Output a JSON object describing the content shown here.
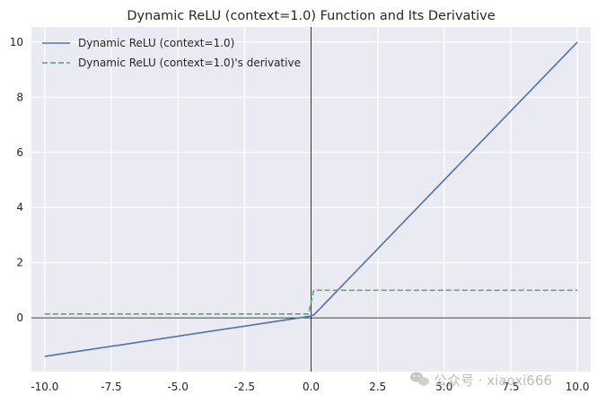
{
  "chart_data": {
    "type": "line",
    "title": "Dynamic ReLU (context=1.0) Function and Its Derivative",
    "xlabel": "",
    "ylabel": "",
    "xlim": [
      -10.5,
      10.5
    ],
    "ylim": [
      -1.95,
      10.55
    ],
    "xticks": [
      -10,
      -7.5,
      -5,
      -2.5,
      0,
      2.5,
      5,
      7.5,
      10
    ],
    "xtick_labels": [
      "-10.0",
      "-7.5",
      "-5.0",
      "-2.5",
      "0.0",
      "2.5",
      "5.0",
      "7.5",
      "10.0"
    ],
    "yticks": [
      0,
      2,
      4,
      6,
      8,
      10
    ],
    "ytick_labels": [
      "0",
      "2",
      "4",
      "6",
      "8",
      "10"
    ],
    "grid": true,
    "legend_position": "top-left",
    "series": [
      {
        "name": "Dynamic ReLU (context=1.0)",
        "color": "#4c72b0",
        "style": "solid",
        "x": [
          -10,
          -0.1,
          0.1,
          10
        ],
        "y": [
          -1.4,
          0.05,
          0.1,
          10
        ]
      },
      {
        "name": "Dynamic ReLU (context=1.0)'s derivative",
        "color": "#55a868",
        "style": "dashed",
        "x": [
          -10,
          -0.1,
          0.1,
          10
        ],
        "y": [
          0.14,
          0.14,
          1.0,
          1.0
        ]
      }
    ],
    "reference_lines": [
      {
        "axis": "x",
        "value": 0,
        "color": "#000000"
      },
      {
        "axis": "y",
        "value": 0,
        "color": "#000000"
      }
    ]
  },
  "watermark": {
    "text": "公众号 · xiaoxi666",
    "icon": "wechat-icon"
  },
  "colors": {
    "plot_background": "#eaeaf2",
    "grid": "#ffffff",
    "text": "#262626"
  }
}
